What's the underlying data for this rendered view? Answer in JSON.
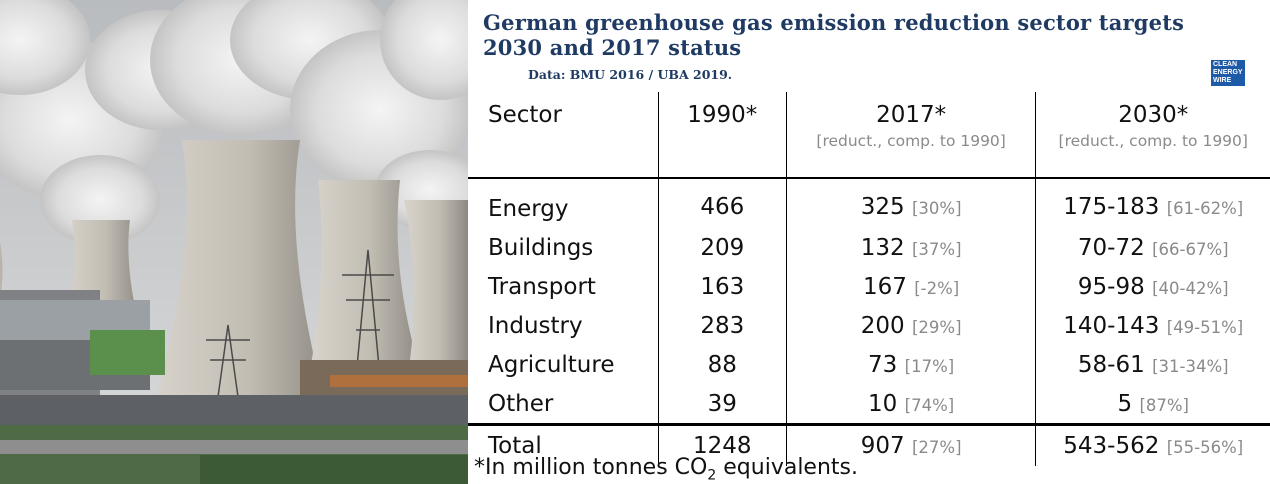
{
  "title": "German greenhouse gas emission reduction sector targets 2030 and 2017 status",
  "source": "Data: BMU 2016 / UBA 2019.",
  "logo": {
    "lines": [
      "CLEAN",
      "ENERGY",
      "WIRE"
    ]
  },
  "chart_data": {
    "type": "table",
    "columns": [
      {
        "label": "Sector",
        "sub": ""
      },
      {
        "label": "1990*",
        "sub": ""
      },
      {
        "label": "2017*",
        "sub": "[reduct., comp. to 1990]"
      },
      {
        "label": "2030*",
        "sub": "[reduct., comp. to 1990]"
      }
    ],
    "rows": [
      {
        "sector": "Energy",
        "y1990": "466",
        "y2017": "325",
        "y2017_pct": "[30%]",
        "y2030": "175-183",
        "y2030_pct": "[61-62%]"
      },
      {
        "sector": "Buildings",
        "y1990": "209",
        "y2017": "132",
        "y2017_pct": "[37%]",
        "y2030": "70-72",
        "y2030_pct": "[66-67%]"
      },
      {
        "sector": "Transport",
        "y1990": "163",
        "y2017": "167",
        "y2017_pct": "[-2%]",
        "y2030": "95-98",
        "y2030_pct": "[40-42%]"
      },
      {
        "sector": "Industry",
        "y1990": "283",
        "y2017": "200",
        "y2017_pct": "[29%]",
        "y2030": "140-143",
        "y2030_pct": "[49-51%]"
      },
      {
        "sector": "Agriculture",
        "y1990": "88",
        "y2017": "73",
        "y2017_pct": "[17%]",
        "y2030": "58-61",
        "y2030_pct": "[31-34%]"
      },
      {
        "sector": "Other",
        "y1990": "39",
        "y2017": "10",
        "y2017_pct": "[74%]",
        "y2030": "5",
        "y2030_pct": "[87%]"
      }
    ],
    "total": {
      "sector": "Total",
      "y1990": "1248",
      "y2017": "907",
      "y2017_pct": "[27%]",
      "y2030": "543-562",
      "y2030_pct": "[55-56%]"
    }
  },
  "footnote": {
    "text": "*In million tonnes CO",
    "sub": "2",
    "tail": " equivalents."
  },
  "colors": {
    "title": "#1f3b63",
    "logo": "#1d5aa8",
    "muted": "#8a8a8a"
  }
}
